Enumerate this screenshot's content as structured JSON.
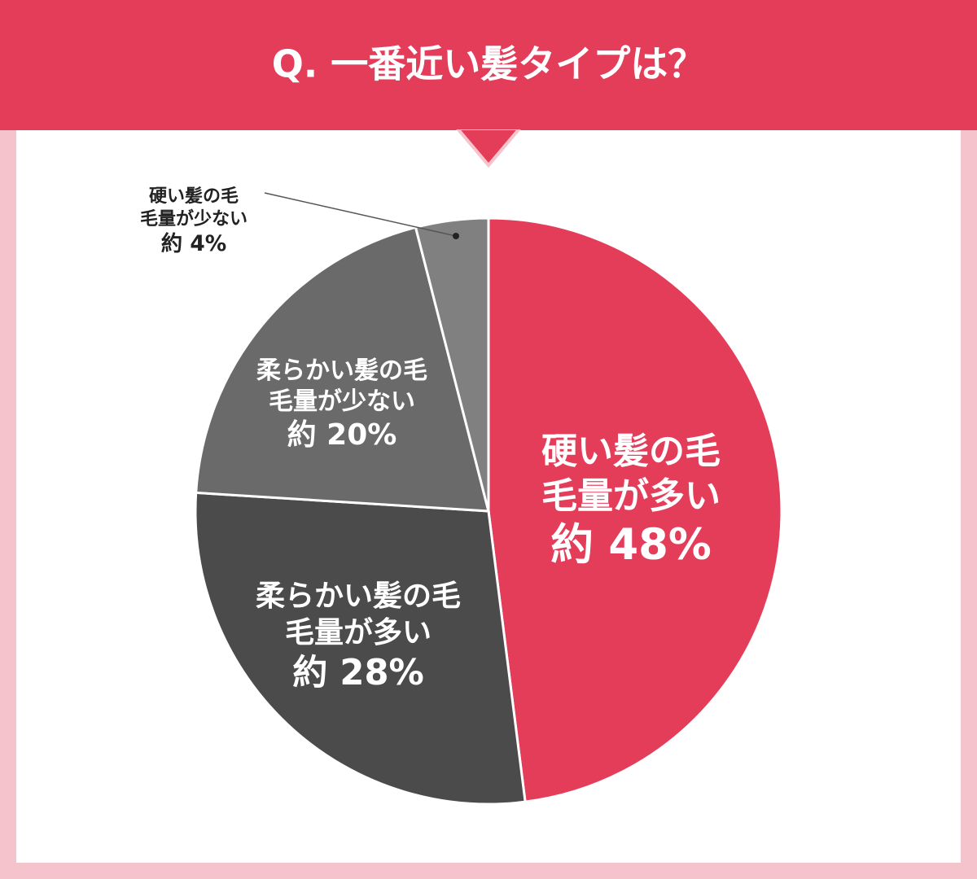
{
  "chart_data": {
    "type": "pie",
    "title": "Q. 一番近い髪タイプは？",
    "categories": [
      "硬い髪の毛\n毛量が多い",
      "柔らかい髪の毛\n毛量が多い",
      "柔らかい髪の毛\n毛量が少ない",
      "硬い髪の毛\n毛量が少ない"
    ],
    "values": [
      48,
      28,
      20,
      4
    ],
    "value_labels": [
      "約 48%",
      "約 28%",
      "約 20%",
      "約 4%"
    ],
    "colors": [
      "#e43d5a",
      "#4b4b4b",
      "#6a6a6a",
      "#808080"
    ]
  }
}
